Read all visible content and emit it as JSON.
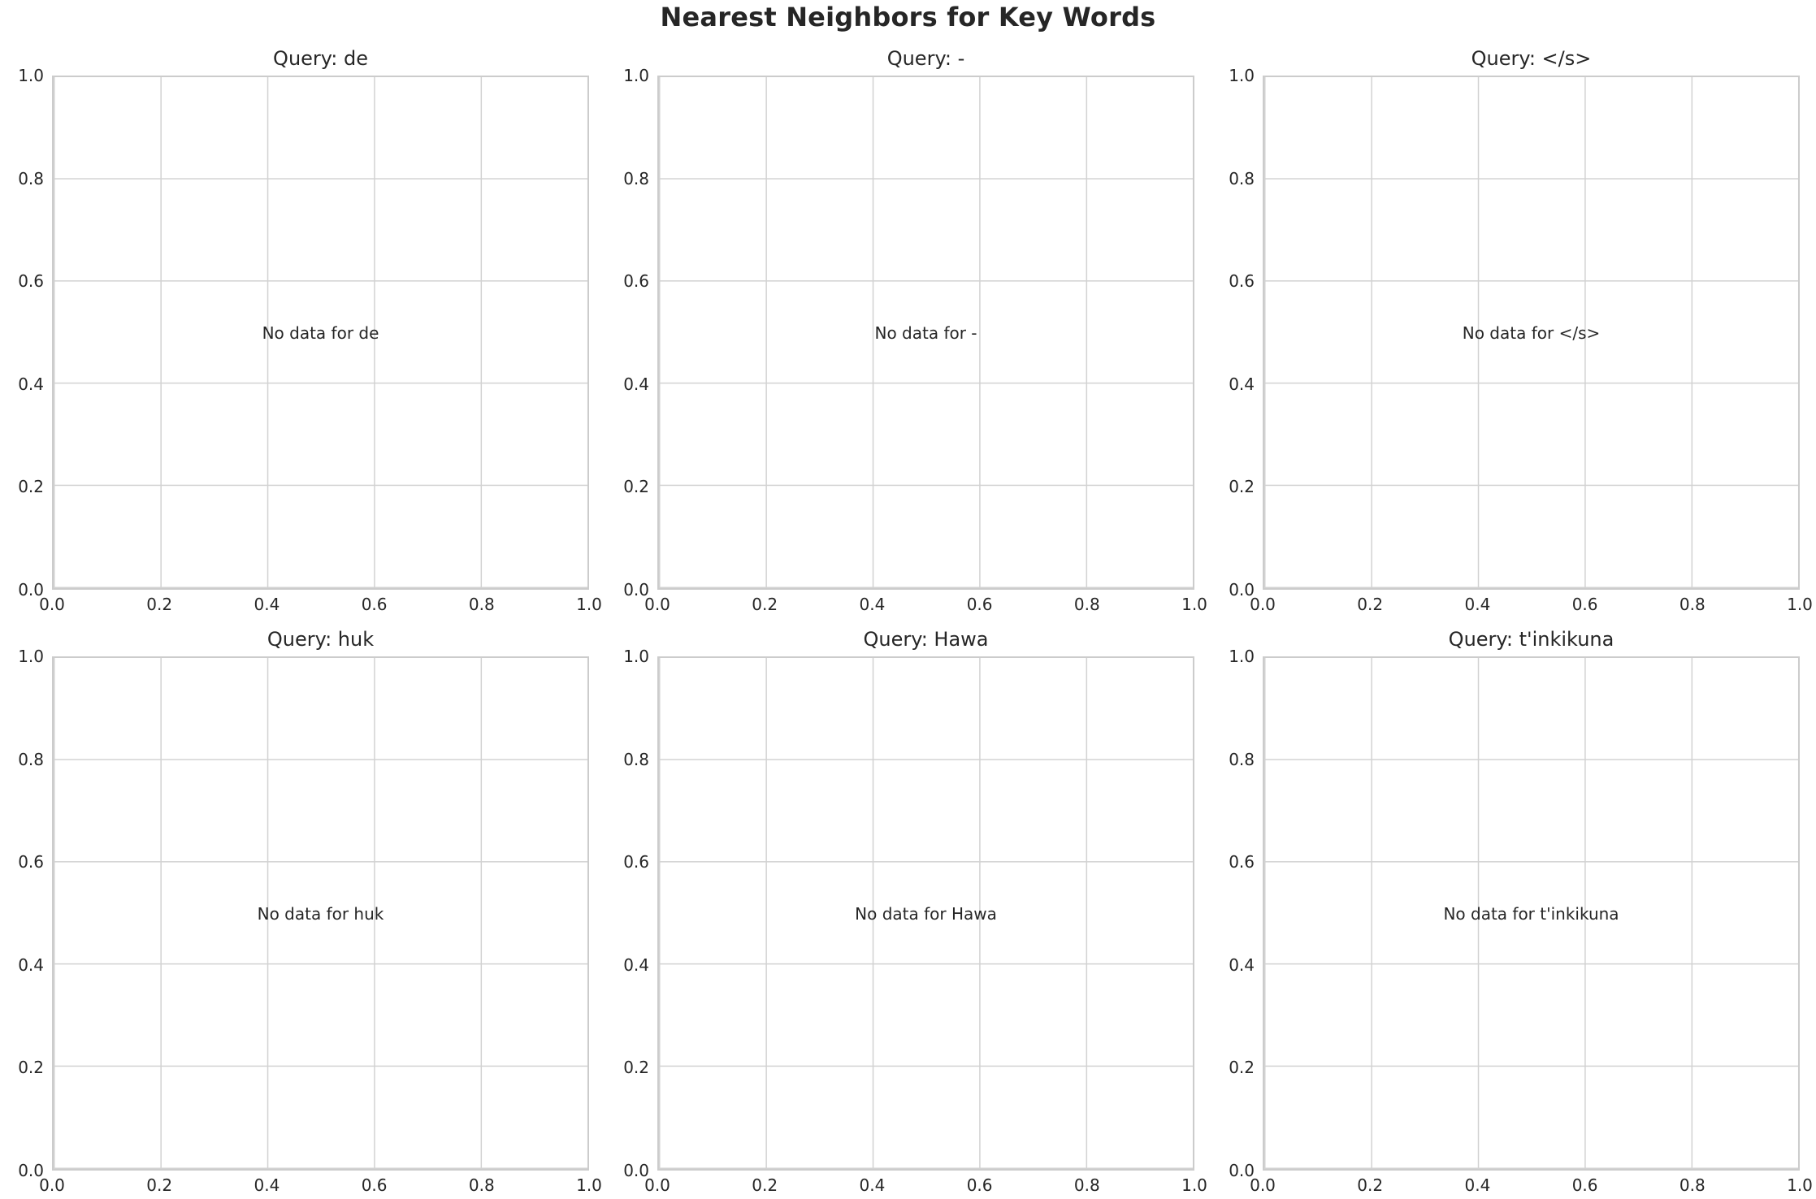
{
  "figure": {
    "title": "Nearest Neighbors for Key Words",
    "background": "#ffffff",
    "text_color": "#262626",
    "spine_color": "#cccccc",
    "grid_color": "#d2d2d2",
    "nrows": 2,
    "ncols": 3
  },
  "chart_data": [
    {
      "type": "scatter",
      "title": "Query: de",
      "query": "de",
      "annotation": "No data for de",
      "x": [],
      "y": [],
      "xlim": [
        0.0,
        1.0
      ],
      "ylim": [
        0.0,
        1.0
      ],
      "xtick_labels": [
        "0.0",
        "0.2",
        "0.4",
        "0.6",
        "0.8",
        "1.0"
      ],
      "ytick_labels": [
        "0.0",
        "0.2",
        "0.4",
        "0.6",
        "0.8",
        "1.0"
      ],
      "grid": true
    },
    {
      "type": "scatter",
      "title": "Query: -",
      "query": "-",
      "annotation": "No data for -",
      "x": [],
      "y": [],
      "xlim": [
        0.0,
        1.0
      ],
      "ylim": [
        0.0,
        1.0
      ],
      "xtick_labels": [
        "0.0",
        "0.2",
        "0.4",
        "0.6",
        "0.8",
        "1.0"
      ],
      "ytick_labels": [
        "0.0",
        "0.2",
        "0.4",
        "0.6",
        "0.8",
        "1.0"
      ],
      "grid": true
    },
    {
      "type": "scatter",
      "title": "Query: </s>",
      "query": "</s>",
      "annotation": "No data for </s>",
      "x": [],
      "y": [],
      "xlim": [
        0.0,
        1.0
      ],
      "ylim": [
        0.0,
        1.0
      ],
      "xtick_labels": [
        "0.0",
        "0.2",
        "0.4",
        "0.6",
        "0.8",
        "1.0"
      ],
      "ytick_labels": [
        "0.0",
        "0.2",
        "0.4",
        "0.6",
        "0.8",
        "1.0"
      ],
      "grid": true
    },
    {
      "type": "scatter",
      "title": "Query: huk",
      "query": "huk",
      "annotation": "No data for huk",
      "x": [],
      "y": [],
      "xlim": [
        0.0,
        1.0
      ],
      "ylim": [
        0.0,
        1.0
      ],
      "xtick_labels": [
        "0.0",
        "0.2",
        "0.4",
        "0.6",
        "0.8",
        "1.0"
      ],
      "ytick_labels": [
        "0.0",
        "0.2",
        "0.4",
        "0.6",
        "0.8",
        "1.0"
      ],
      "grid": true
    },
    {
      "type": "scatter",
      "title": "Query: Hawa",
      "query": "Hawa",
      "annotation": "No data for Hawa",
      "x": [],
      "y": [],
      "xlim": [
        0.0,
        1.0
      ],
      "ylim": [
        0.0,
        1.0
      ],
      "xtick_labels": [
        "0.0",
        "0.2",
        "0.4",
        "0.6",
        "0.8",
        "1.0"
      ],
      "ytick_labels": [
        "0.0",
        "0.2",
        "0.4",
        "0.6",
        "0.8",
        "1.0"
      ],
      "grid": true
    },
    {
      "type": "scatter",
      "title": "Query: t'inkikuna",
      "query": "t'inkikuna",
      "annotation": "No data for t'inkikuna",
      "x": [],
      "y": [],
      "xlim": [
        0.0,
        1.0
      ],
      "ylim": [
        0.0,
        1.0
      ],
      "xtick_labels": [
        "0.0",
        "0.2",
        "0.4",
        "0.6",
        "0.8",
        "1.0"
      ],
      "ytick_labels": [
        "0.0",
        "0.2",
        "0.4",
        "0.6",
        "0.8",
        "1.0"
      ],
      "grid": true
    }
  ]
}
